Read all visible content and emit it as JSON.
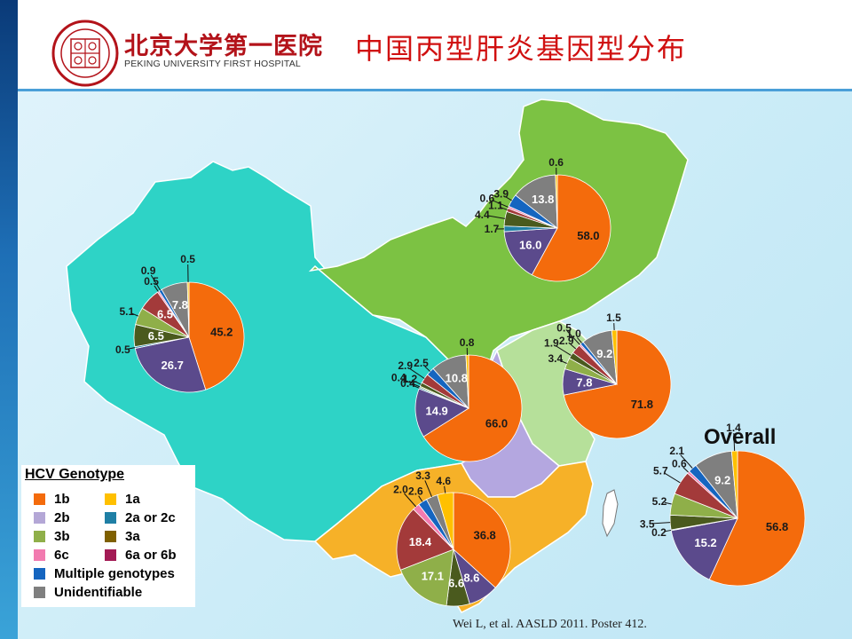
{
  "header": {
    "hospital_cn": "北京大学第一医院",
    "hospital_en": "PEKING UNIVERSITY FIRST HOSPITAL",
    "title": "中国丙型肝炎基因型分布"
  },
  "legend": {
    "title": "HCV Genotype",
    "items": [
      {
        "label": "1b",
        "color": "#f46b0c"
      },
      {
        "label": "1a",
        "color": "#ffc000"
      },
      {
        "label": "2b",
        "color": "#b4a7d6"
      },
      {
        "label": "2a or 2c",
        "color": "#1f7fa5"
      },
      {
        "label": "3b",
        "color": "#8faf49"
      },
      {
        "label": "3a",
        "color": "#7f6000"
      },
      {
        "label": "6c",
        "color": "#f27bb0"
      },
      {
        "label": "6a or 6b",
        "color": "#a31b55"
      },
      {
        "label": "Multiple genotypes",
        "color": "#1565c0"
      },
      {
        "label": "Unidentifiable",
        "color": "#7f7f7f"
      }
    ]
  },
  "map_colors": {
    "west": "#2ed3c6",
    "north": "#7cc243",
    "south": "#f6b128",
    "center": "#b4a7e0",
    "east": "#b6e09a"
  },
  "overall_label": "Overall",
  "citation": "Wei  L, et al. AASLD 2011. Poster 412.",
  "chart_data": [
    {
      "type": "pie",
      "region": "Northwest",
      "slices": [
        {
          "genotype": "1b",
          "value": 45.2,
          "label": "45.2",
          "color": "#f46b0c"
        },
        {
          "genotype": "2b",
          "value": 26.7,
          "label": "26.7",
          "color": "#5b4a8c"
        },
        {
          "genotype": "2a or 2c",
          "value": 0.5,
          "label": "0.5",
          "color": "#1f7fa5"
        },
        {
          "genotype": "3a",
          "value": 6.5,
          "label": "6.5",
          "color": "#4a5a1e"
        },
        {
          "genotype": "3b",
          "value": 5.1,
          "label": "5.1",
          "color": "#8faf49"
        },
        {
          "genotype": "6a or 6b",
          "value": 6.5,
          "label": "6.5",
          "color": "#a33a3a"
        },
        {
          "genotype": "6c",
          "value": 0.5,
          "label": "0.5",
          "color": "#f27bb0"
        },
        {
          "genotype": "Multiple genotypes",
          "value": 0.9,
          "label": "0.9",
          "color": "#1565c0"
        },
        {
          "genotype": "Unidentifiable",
          "value": 7.8,
          "label": "7.8",
          "color": "#7f7f7f"
        },
        {
          "genotype": "1a",
          "value": 0.5,
          "label": "0.5",
          "color": "#ffc000"
        }
      ]
    },
    {
      "type": "pie",
      "region": "Northeast",
      "slices": [
        {
          "genotype": "1b",
          "value": 58.0,
          "label": "58.0",
          "color": "#f46b0c"
        },
        {
          "genotype": "2b",
          "value": 16.0,
          "label": "16.0",
          "color": "#5b4a8c"
        },
        {
          "genotype": "2a or 2c",
          "value": 1.7,
          "label": "1.7",
          "color": "#1f7fa5"
        },
        {
          "genotype": "3a",
          "value": 4.4,
          "label": "4.4",
          "color": "#4a5a1e"
        },
        {
          "genotype": "6a or 6b",
          "value": 1.1,
          "label": "1.1",
          "color": "#a33a3a"
        },
        {
          "genotype": "6c",
          "value": 0.6,
          "label": "0.6",
          "color": "#f27bb0"
        },
        {
          "genotype": "Multiple genotypes",
          "value": 3.9,
          "label": "3.9",
          "color": "#1565c0"
        },
        {
          "genotype": "Unidentifiable",
          "value": 13.8,
          "label": "13.8",
          "color": "#7f7f7f"
        },
        {
          "genotype": "1a",
          "value": 0.6,
          "label": "0.6",
          "color": "#ffc000"
        }
      ]
    },
    {
      "type": "pie",
      "region": "Central",
      "slices": [
        {
          "genotype": "1b",
          "value": 66.0,
          "label": "66.0",
          "color": "#f46b0c"
        },
        {
          "genotype": "2b",
          "value": 14.9,
          "label": "14.9",
          "color": "#5b4a8c"
        },
        {
          "genotype": "2a or 2c",
          "value": 0.4,
          "label": "0.4",
          "color": "#1f7fa5"
        },
        {
          "genotype": "3b",
          "value": 0.4,
          "label": "0.4",
          "color": "#8faf49"
        },
        {
          "genotype": "3a",
          "value": 1.2,
          "label": "1.2",
          "color": "#4a5a1e"
        },
        {
          "genotype": "6a or 6b",
          "value": 2.9,
          "label": "2.9",
          "color": "#a33a3a"
        },
        {
          "genotype": "Multiple genotypes",
          "value": 2.5,
          "label": "2.5",
          "color": "#1565c0"
        },
        {
          "genotype": "Unidentifiable",
          "value": 10.8,
          "label": "10.8",
          "color": "#7f7f7f"
        },
        {
          "genotype": "1a",
          "value": 0.8,
          "label": "0.8",
          "color": "#ffc000"
        }
      ]
    },
    {
      "type": "pie",
      "region": "East",
      "slices": [
        {
          "genotype": "1b",
          "value": 71.8,
          "label": "71.8",
          "color": "#f46b0c"
        },
        {
          "genotype": "2b",
          "value": 7.8,
          "label": "7.8",
          "color": "#5b4a8c"
        },
        {
          "genotype": "3b",
          "value": 3.4,
          "label": "3.4",
          "color": "#8faf49"
        },
        {
          "genotype": "3a",
          "value": 1.9,
          "label": "1.9",
          "color": "#4a5a1e"
        },
        {
          "genotype": "6a or 6b",
          "value": 2.9,
          "label": "2.9",
          "color": "#a33a3a"
        },
        {
          "genotype": "6c",
          "value": 0.5,
          "label": "0.5",
          "color": "#f27bb0"
        },
        {
          "genotype": "Multiple genotypes",
          "value": 1.0,
          "label": "1.0",
          "color": "#1565c0"
        },
        {
          "genotype": "Unidentifiable",
          "value": 9.2,
          "label": "9.2",
          "color": "#7f7f7f"
        },
        {
          "genotype": "1a",
          "value": 1.5,
          "label": "1.5",
          "color": "#ffc000"
        }
      ]
    },
    {
      "type": "pie",
      "region": "South",
      "slices": [
        {
          "genotype": "1b",
          "value": 36.8,
          "label": "36.8",
          "color": "#f46b0c"
        },
        {
          "genotype": "2b",
          "value": 8.6,
          "label": "8.6",
          "color": "#5b4a8c"
        },
        {
          "genotype": "3a",
          "value": 6.6,
          "label": "6.6",
          "color": "#4a5a1e"
        },
        {
          "genotype": "3b",
          "value": 17.1,
          "label": "17.1",
          "color": "#8faf49"
        },
        {
          "genotype": "6a or 6b",
          "value": 18.4,
          "label": "18.4",
          "color": "#a33a3a"
        },
        {
          "genotype": "6c",
          "value": 2.0,
          "label": "2.0",
          "color": "#f27bb0"
        },
        {
          "genotype": "Multiple genotypes",
          "value": 2.6,
          "label": "2.6",
          "color": "#1565c0"
        },
        {
          "genotype": "Unidentifiable",
          "value": 3.3,
          "label": "3.3",
          "color": "#7f7f7f"
        },
        {
          "genotype": "1a",
          "value": 4.6,
          "label": "4.6",
          "color": "#ffc000"
        }
      ]
    },
    {
      "type": "pie",
      "region": "Overall",
      "slices": [
        {
          "genotype": "1b",
          "value": 56.8,
          "label": "56.8",
          "color": "#f46b0c"
        },
        {
          "genotype": "2b",
          "value": 15.2,
          "label": "15.2",
          "color": "#5b4a8c"
        },
        {
          "genotype": "2a or 2c",
          "value": 0.2,
          "label": "0.2",
          "color": "#1f7fa5"
        },
        {
          "genotype": "3a",
          "value": 3.5,
          "label": "3.5",
          "color": "#4a5a1e"
        },
        {
          "genotype": "3b",
          "value": 5.2,
          "label": "5.2",
          "color": "#8faf49"
        },
        {
          "genotype": "6a or 6b",
          "value": 5.7,
          "label": "5.7",
          "color": "#a33a3a"
        },
        {
          "genotype": "6c",
          "value": 0.6,
          "label": "0.6",
          "color": "#f27bb0"
        },
        {
          "genotype": "Multiple genotypes",
          "value": 2.1,
          "label": "2.1",
          "color": "#1565c0"
        },
        {
          "genotype": "Unidentifiable",
          "value": 9.2,
          "label": "9.2",
          "color": "#7f7f7f"
        },
        {
          "genotype": "1a",
          "value": 1.4,
          "label": "1.4",
          "color": "#ffc000"
        }
      ]
    }
  ]
}
